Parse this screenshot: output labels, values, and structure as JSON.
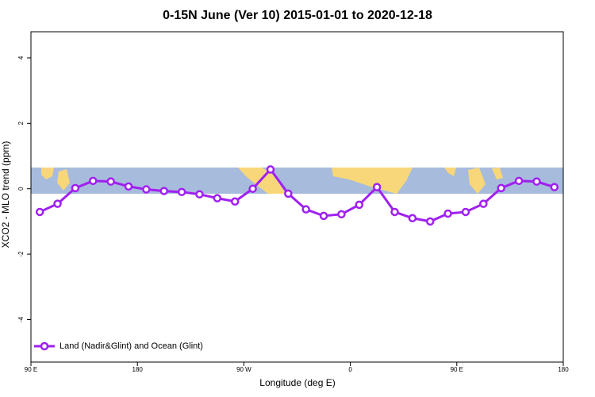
{
  "chart_data": {
    "type": "line",
    "title": "0-15N June (Ver 10)   2015-01-01 to 2020-12-18",
    "x_label": "Longitude (deg E)",
    "y_label": "XCO2 - MLO trend (ppm)",
    "x": [
      97.5,
      112.5,
      127.5,
      142.5,
      157.5,
      172.5,
      187.5,
      202.5,
      217.5,
      232.5,
      247.5,
      262.5,
      277.5,
      292.5,
      307.5,
      322.5,
      337.5,
      352.5,
      367.5,
      382.5,
      397.5,
      412.5,
      427.5,
      442.5,
      457.5,
      472.5,
      487.5,
      502.5,
      517.5,
      532.5
    ],
    "series": [
      {
        "name": "Land (Nadir&Glint) and Ocean (Glint)",
        "color": "#a020f0",
        "values": [
          -0.71,
          -0.46,
          0.02,
          0.24,
          0.22,
          0.07,
          -0.02,
          -0.07,
          -0.1,
          -0.17,
          -0.29,
          -0.39,
          0.0,
          0.59,
          -0.15,
          -0.63,
          -0.83,
          -0.78,
          -0.49,
          0.05,
          -0.71,
          -0.9,
          -1.0,
          -0.76,
          -0.71,
          -0.46,
          0.02,
          0.24,
          0.22,
          0.05
        ]
      }
    ],
    "xlim": [
      90,
      540
    ],
    "xticks": [
      {
        "value": 90,
        "label": "90 E"
      },
      {
        "value": 180,
        "label": "180"
      },
      {
        "value": 270,
        "label": "90 W"
      },
      {
        "value": 360,
        "label": "0"
      },
      {
        "value": 450,
        "label": "90 E"
      },
      {
        "value": 540,
        "label": "180"
      }
    ],
    "ylim": [
      -5.3,
      4.8
    ],
    "yticks": [
      -4,
      -2,
      0,
      2,
      4
    ],
    "legend": "bottom-left"
  }
}
